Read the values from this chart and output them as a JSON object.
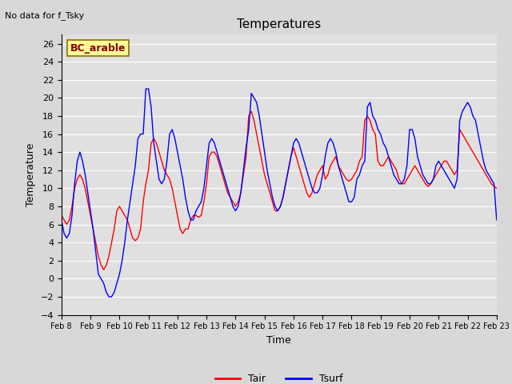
{
  "title": "Temperatures",
  "xlabel": "Time",
  "ylabel": "Temperature",
  "no_data_text": "No data for f_Tsky",
  "legend_label_text": "BC_arable",
  "legend_label_color": "#8B0000",
  "legend_label_bg": "#FFFF99",
  "ylim": [
    -4,
    27
  ],
  "yticks": [
    -4,
    -2,
    0,
    2,
    4,
    6,
    8,
    10,
    12,
    14,
    16,
    18,
    20,
    22,
    24,
    26
  ],
  "x_tick_labels": [
    "Feb 8",
    "Feb 9",
    "Feb 10",
    "Feb 11",
    "Feb 12",
    "Feb 13",
    "Feb 14",
    "Feb 15",
    "Feb 16",
    "Feb 17",
    "Feb 18",
    "Feb 19",
    "Feb 20",
    "Feb 21",
    "Feb 22",
    "Feb 23"
  ],
  "tair_color": "#FF0000",
  "tsurf_color": "#0000FF",
  "bg_color": "#E0E0E0",
  "grid_color": "#FFFFFF",
  "tair": [
    7.0,
    6.5,
    6.0,
    6.5,
    8.0,
    10.0,
    11.0,
    11.5,
    11.0,
    10.0,
    8.5,
    7.0,
    5.5,
    4.0,
    2.5,
    1.5,
    1.0,
    1.5,
    2.5,
    4.0,
    5.5,
    7.5,
    8.0,
    7.5,
    7.0,
    6.5,
    5.5,
    4.5,
    4.2,
    4.5,
    5.5,
    8.5,
    10.5,
    12.0,
    15.0,
    15.5,
    15.0,
    14.0,
    13.0,
    12.0,
    11.5,
    11.0,
    10.0,
    8.5,
    7.0,
    5.5,
    5.0,
    5.5,
    5.5,
    6.5,
    7.0,
    7.0,
    6.8,
    7.0,
    8.5,
    10.5,
    13.5,
    14.0,
    14.0,
    13.5,
    12.5,
    11.5,
    10.5,
    9.5,
    9.0,
    8.5,
    8.0,
    8.5,
    9.5,
    11.5,
    13.5,
    18.0,
    18.5,
    17.5,
    16.0,
    14.5,
    13.0,
    11.5,
    10.5,
    9.5,
    8.5,
    7.5,
    7.5,
    8.0,
    9.0,
    10.5,
    12.0,
    13.5,
    14.5,
    13.5,
    12.5,
    11.5,
    10.5,
    9.5,
    9.0,
    9.5,
    10.5,
    11.5,
    12.0,
    12.5,
    11.0,
    11.5,
    12.5,
    13.0,
    13.5,
    12.5,
    12.0,
    11.5,
    11.0,
    10.8,
    11.0,
    11.5,
    12.0,
    13.0,
    13.5,
    17.5,
    18.0,
    17.5,
    16.5,
    16.0,
    13.0,
    12.5,
    12.5,
    13.0,
    13.5,
    13.0,
    12.5,
    12.0,
    11.0,
    10.5,
    10.5,
    11.0,
    11.5,
    12.0,
    12.5,
    12.0,
    11.5,
    11.0,
    10.5,
    10.2,
    10.5,
    11.0,
    11.5,
    12.0,
    12.5,
    13.0,
    13.0,
    12.5,
    12.0,
    11.5,
    12.0,
    16.5,
    16.0,
    15.5,
    15.0,
    14.5,
    14.0,
    13.5,
    13.0,
    12.5,
    12.0,
    11.5,
    11.0,
    10.5,
    10.2,
    10.0
  ],
  "tsurf": [
    6.5,
    5.0,
    4.5,
    5.0,
    7.0,
    10.5,
    13.0,
    14.0,
    13.0,
    11.5,
    9.5,
    7.5,
    5.5,
    3.0,
    0.5,
    0.0,
    -0.5,
    -1.5,
    -2.0,
    -2.0,
    -1.5,
    -0.5,
    0.5,
    2.0,
    4.0,
    6.5,
    8.5,
    10.5,
    12.5,
    15.5,
    16.0,
    16.0,
    21.0,
    21.0,
    19.0,
    15.0,
    13.0,
    11.0,
    10.5,
    11.0,
    13.0,
    16.0,
    16.5,
    15.5,
    14.0,
    12.5,
    11.0,
    9.0,
    7.5,
    6.5,
    6.5,
    7.5,
    8.0,
    8.5,
    10.0,
    12.5,
    15.0,
    15.5,
    15.0,
    14.0,
    13.0,
    12.0,
    11.0,
    10.0,
    9.0,
    8.0,
    7.5,
    8.0,
    9.5,
    12.0,
    14.5,
    16.5,
    20.5,
    20.0,
    19.5,
    18.0,
    16.0,
    14.0,
    12.0,
    10.5,
    9.0,
    8.0,
    7.5,
    8.0,
    9.0,
    10.5,
    12.0,
    13.5,
    15.0,
    15.5,
    15.0,
    14.0,
    13.0,
    12.0,
    11.0,
    10.0,
    9.5,
    9.5,
    10.0,
    11.5,
    13.5,
    15.0,
    15.5,
    15.0,
    14.0,
    12.5,
    11.5,
    10.5,
    9.5,
    8.5,
    8.5,
    9.0,
    11.0,
    11.5,
    12.5,
    13.0,
    19.0,
    19.5,
    18.0,
    17.5,
    16.5,
    16.0,
    15.0,
    14.5,
    13.5,
    12.5,
    11.5,
    11.0,
    10.5,
    10.5,
    11.0,
    12.5,
    16.5,
    16.5,
    15.5,
    13.5,
    12.5,
    11.5,
    11.0,
    10.5,
    10.5,
    11.0,
    12.5,
    13.0,
    12.5,
    12.0,
    11.5,
    11.0,
    10.5,
    10.0,
    11.0,
    17.5,
    18.5,
    19.0,
    19.5,
    19.0,
    18.0,
    17.5,
    16.0,
    14.5,
    13.0,
    12.0,
    11.5,
    11.0,
    10.5,
    6.5
  ]
}
